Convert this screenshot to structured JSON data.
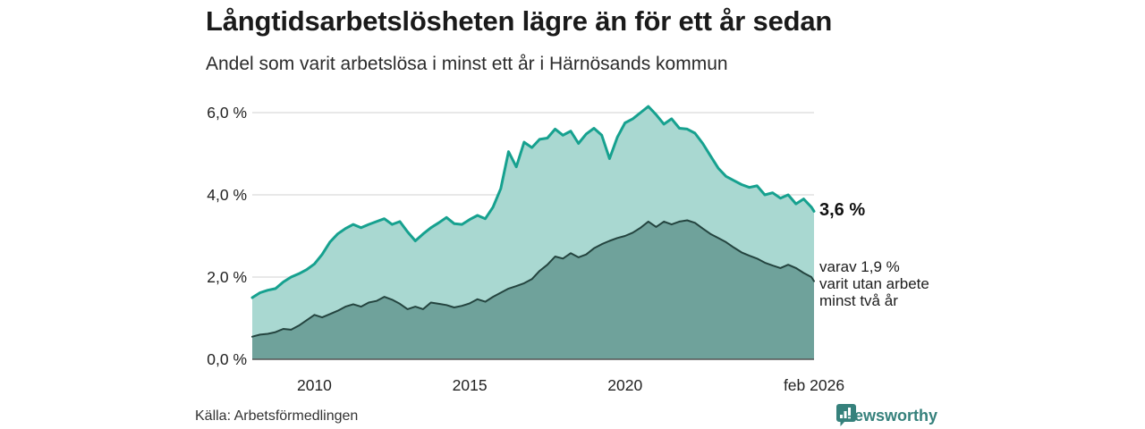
{
  "chart_data": {
    "type": "area",
    "title": "Långtidsarbetslösheten lägre än för ett år sedan",
    "subtitle": "Andel som varit arbetslösa i minst ett år i Härnösands kommun",
    "x_unit": "decimal_year",
    "x_range": [
      2008.0,
      2026.083
    ],
    "ylim": [
      0,
      6.5
    ],
    "grid": "horizontal",
    "y_ticks": [
      {
        "value": 0,
        "label": "0,0 %"
      },
      {
        "value": 2,
        "label": "2,0 %"
      },
      {
        "value": 4,
        "label": "4,0 %"
      },
      {
        "value": 6,
        "label": "6,0 %"
      }
    ],
    "x_ticks": [
      {
        "value": 2010,
        "label": "2010"
      },
      {
        "value": 2015,
        "label": "2015"
      },
      {
        "value": 2020,
        "label": "2020"
      },
      {
        "value": 2026.083,
        "label": "feb 2026"
      }
    ],
    "x": [
      2008.0,
      2008.25,
      2008.5,
      2008.75,
      2009.0,
      2009.25,
      2009.5,
      2009.75,
      2010.0,
      2010.25,
      2010.5,
      2010.75,
      2011.0,
      2011.25,
      2011.5,
      2011.75,
      2012.0,
      2012.25,
      2012.5,
      2012.75,
      2013.0,
      2013.25,
      2013.5,
      2013.75,
      2014.0,
      2014.25,
      2014.5,
      2014.75,
      2015.0,
      2015.25,
      2015.5,
      2015.75,
      2016.0,
      2016.25,
      2016.5,
      2016.75,
      2017.0,
      2017.25,
      2017.5,
      2017.75,
      2018.0,
      2018.25,
      2018.5,
      2018.75,
      2019.0,
      2019.25,
      2019.5,
      2019.75,
      2020.0,
      2020.25,
      2020.5,
      2020.75,
      2021.0,
      2021.25,
      2021.5,
      2021.75,
      2022.0,
      2022.25,
      2022.5,
      2022.75,
      2023.0,
      2023.25,
      2023.5,
      2023.75,
      2024.0,
      2024.25,
      2024.5,
      2024.75,
      2025.0,
      2025.25,
      2025.5,
      2025.75,
      2026.0,
      2026.083
    ],
    "series": [
      {
        "name": "Andel arbetslösa minst ett år",
        "latest_label": "3,6 %",
        "latest_value": 3.6,
        "values": [
          1.5,
          1.62,
          1.68,
          1.72,
          1.88,
          2.0,
          2.08,
          2.18,
          2.32,
          2.55,
          2.85,
          3.05,
          3.18,
          3.28,
          3.2,
          3.28,
          3.35,
          3.42,
          3.28,
          3.35,
          3.1,
          2.88,
          3.05,
          3.2,
          3.32,
          3.45,
          3.3,
          3.28,
          3.4,
          3.5,
          3.42,
          3.7,
          4.15,
          5.05,
          4.68,
          5.28,
          5.15,
          5.35,
          5.38,
          5.6,
          5.45,
          5.55,
          5.25,
          5.48,
          5.62,
          5.45,
          4.88,
          5.4,
          5.75,
          5.85,
          6.0,
          6.15,
          5.95,
          5.72,
          5.85,
          5.62,
          5.6,
          5.5,
          5.25,
          4.95,
          4.65,
          4.45,
          4.35,
          4.25,
          4.18,
          4.22,
          4.0,
          4.05,
          3.92,
          4.0,
          3.78,
          3.9,
          3.7,
          3.6
        ]
      },
      {
        "name": "varav utan arbete minst två år",
        "latest_label": "1,9 %",
        "latest_value": 1.9,
        "values": [
          0.55,
          0.6,
          0.62,
          0.66,
          0.74,
          0.72,
          0.82,
          0.95,
          1.08,
          1.02,
          1.1,
          1.18,
          1.28,
          1.34,
          1.28,
          1.38,
          1.42,
          1.52,
          1.45,
          1.35,
          1.22,
          1.28,
          1.22,
          1.38,
          1.35,
          1.32,
          1.26,
          1.3,
          1.36,
          1.46,
          1.4,
          1.52,
          1.62,
          1.72,
          1.78,
          1.85,
          1.95,
          2.15,
          2.3,
          2.5,
          2.45,
          2.58,
          2.48,
          2.55,
          2.7,
          2.8,
          2.88,
          2.95,
          3.0,
          3.08,
          3.2,
          3.35,
          3.22,
          3.35,
          3.28,
          3.35,
          3.38,
          3.32,
          3.18,
          3.05,
          2.95,
          2.85,
          2.72,
          2.6,
          2.52,
          2.45,
          2.35,
          2.28,
          2.22,
          2.3,
          2.22,
          2.1,
          2.0,
          1.9
        ]
      }
    ]
  },
  "annotations": {
    "latest_total": "3,6 %",
    "secondary": [
      "varav 1,9 %",
      "varit utan arbete",
      "minst två år"
    ]
  },
  "footer": {
    "source": "Källa: Arbetsförmedlingen",
    "brand": "Newsworthy"
  },
  "colors": {
    "total_line": "#16a18f",
    "total_fill": "#a9d8d1",
    "two_year_line": "#24443f",
    "two_year_fill": "#6fa29b",
    "gridline": "#d9d9d9",
    "axis_line": "#555555",
    "brand_teal": "#36817c"
  }
}
